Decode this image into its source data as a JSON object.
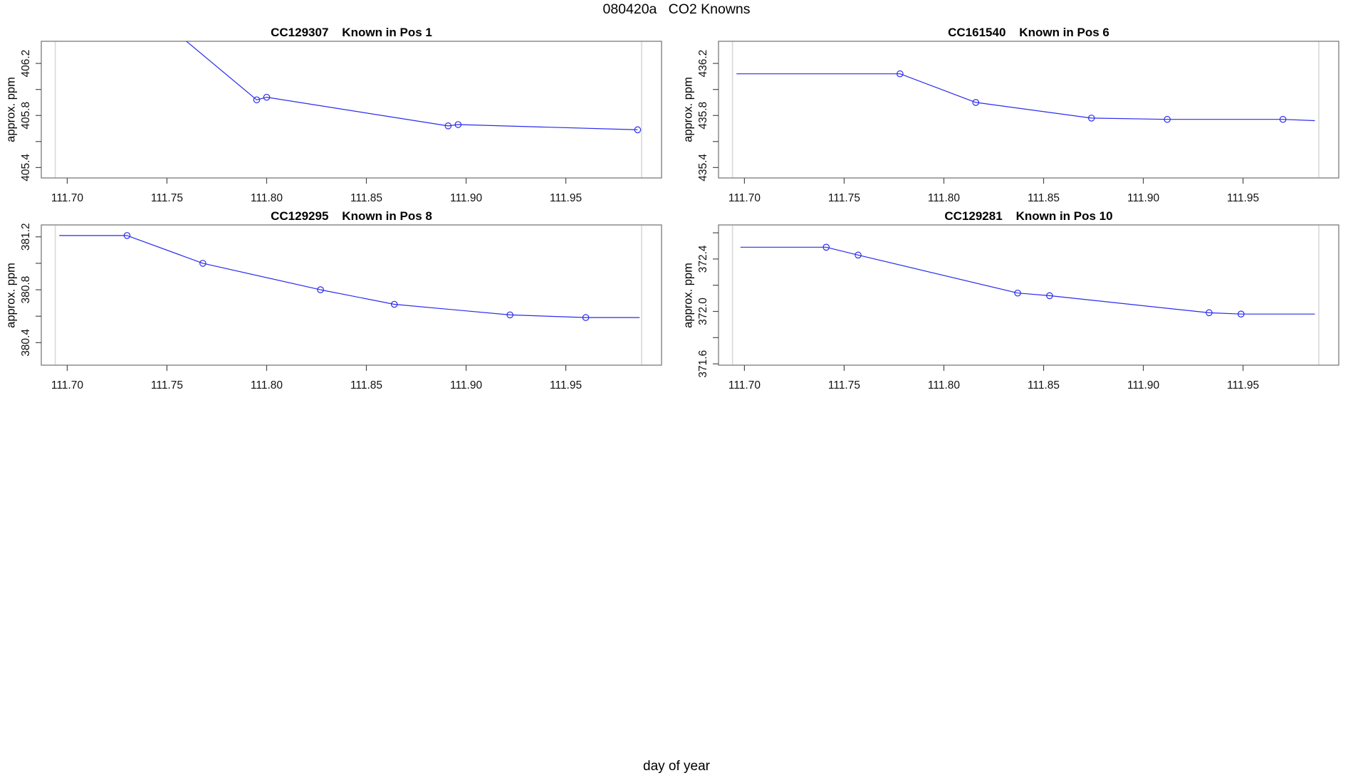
{
  "figure": {
    "title": "080420a   CO2 Knowns",
    "xlabel": "day of year",
    "ylabel": "approx. ppm",
    "colors": {
      "line": "#2a2aee",
      "box": "#848484",
      "tick": "#4a4a4a",
      "guide": "#d8d8d8",
      "text": "#111111"
    }
  },
  "chart_data": [
    {
      "type": "line",
      "sample_id": "CC129307",
      "position_label": "Known in Pos 1",
      "title": "CC129307    Known in Pos 1",
      "xlabel": "day of year",
      "ylabel": "approx. ppm",
      "xlim": [
        111.687,
        111.998
      ],
      "ylim": [
        405.32,
        406.37
      ],
      "xticks": [
        111.7,
        111.75,
        111.8,
        111.85,
        111.9,
        111.95
      ],
      "yticks": [
        405.4,
        405.6,
        405.8,
        406.0,
        406.2
      ],
      "yticks_labeled": [
        405.4,
        405.8,
        406.2
      ],
      "guide_x": [
        111.694,
        111.988
      ],
      "points": [
        [
          111.694,
          407.21,
          0
        ],
        [
          111.795,
          405.92,
          1
        ],
        [
          111.8,
          405.94,
          1
        ],
        [
          111.891,
          405.72,
          1
        ],
        [
          111.896,
          405.73,
          1
        ],
        [
          111.986,
          405.69,
          1
        ]
      ]
    },
    {
      "type": "line",
      "sample_id": "CC161540",
      "position_label": "Known in Pos 6",
      "title": "CC161540    Known in Pos 6",
      "xlabel": "day of year",
      "ylabel": "approx. ppm",
      "xlim": [
        111.687,
        111.998
      ],
      "ylim": [
        435.32,
        436.37
      ],
      "xticks": [
        111.7,
        111.75,
        111.8,
        111.85,
        111.9,
        111.95
      ],
      "yticks": [
        435.4,
        435.6,
        435.8,
        436.0,
        436.2
      ],
      "yticks_labeled": [
        435.4,
        435.8,
        436.2
      ],
      "guide_x": [
        111.694,
        111.988
      ],
      "points": [
        [
          111.696,
          436.12,
          0
        ],
        [
          111.778,
          436.12,
          1
        ],
        [
          111.816,
          435.9,
          1
        ],
        [
          111.874,
          435.78,
          1
        ],
        [
          111.912,
          435.77,
          1
        ],
        [
          111.97,
          435.77,
          1
        ],
        [
          111.986,
          435.76,
          0
        ]
      ]
    },
    {
      "type": "line",
      "sample_id": "CC129295",
      "position_label": "Known in Pos 8",
      "title": "CC129295    Known in Pos 8",
      "xlabel": "day of year",
      "ylabel": "approx. ppm",
      "xlim": [
        111.687,
        111.998
      ],
      "ylim": [
        380.23,
        381.29
      ],
      "xticks": [
        111.7,
        111.75,
        111.8,
        111.85,
        111.9,
        111.95
      ],
      "yticks": [
        380.4,
        380.6,
        380.8,
        381.0,
        381.2
      ],
      "yticks_labeled": [
        380.4,
        380.8,
        381.2
      ],
      "guide_x": [
        111.694,
        111.988
      ],
      "points": [
        [
          111.696,
          381.21,
          0
        ],
        [
          111.73,
          381.21,
          1
        ],
        [
          111.768,
          381.0,
          1
        ],
        [
          111.827,
          380.8,
          1
        ],
        [
          111.864,
          380.69,
          1
        ],
        [
          111.922,
          380.61,
          1
        ],
        [
          111.96,
          380.59,
          1
        ],
        [
          111.987,
          380.59,
          0
        ]
      ]
    },
    {
      "type": "line",
      "sample_id": "CC129281",
      "position_label": "Known in Pos 10",
      "title": "CC129281    Known in Pos 10",
      "xlabel": "day of year",
      "ylabel": "approx. ppm",
      "xlim": [
        111.687,
        111.998
      ],
      "ylim": [
        371.59,
        372.66
      ],
      "xticks": [
        111.7,
        111.75,
        111.8,
        111.85,
        111.9,
        111.95
      ],
      "yticks": [
        371.6,
        371.8,
        372.0,
        372.2,
        372.4,
        372.6
      ],
      "yticks_labeled": [
        371.6,
        372.0,
        372.4
      ],
      "guide_x": [
        111.694,
        111.988
      ],
      "points": [
        [
          111.698,
          372.49,
          0
        ],
        [
          111.741,
          372.49,
          1
        ],
        [
          111.757,
          372.43,
          1
        ],
        [
          111.837,
          372.14,
          1
        ],
        [
          111.853,
          372.12,
          1
        ],
        [
          111.933,
          371.99,
          1
        ],
        [
          111.949,
          371.98,
          1
        ],
        [
          111.986,
          371.98,
          0
        ]
      ]
    }
  ]
}
